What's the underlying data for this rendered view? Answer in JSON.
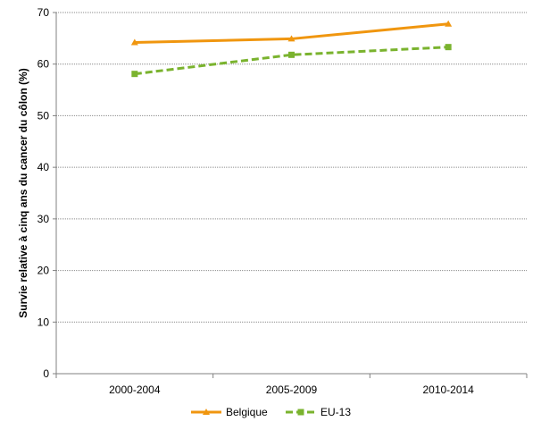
{
  "chart_data": {
    "type": "line",
    "categories": [
      "2000-2004",
      "2005-2009",
      "2010-2014"
    ],
    "series": [
      {
        "name": "Belgique",
        "values": [
          64.2,
          64.9,
          67.8
        ],
        "color": "#F0960F",
        "marker": "triangle",
        "line_style": "solid"
      },
      {
        "name": "EU-13",
        "values": [
          58.1,
          61.8,
          63.3
        ],
        "color": "#7AB32E",
        "marker": "square",
        "line_style": "dashed"
      }
    ],
    "ylabel": "Survie relative à cinq ans du cancer du côlon (%)",
    "xlabel": "",
    "ylim": [
      0,
      70
    ],
    "yticks": [
      0,
      10,
      20,
      30,
      40,
      50,
      60,
      70
    ],
    "grid": "horizontal",
    "legend_position": "bottom"
  }
}
